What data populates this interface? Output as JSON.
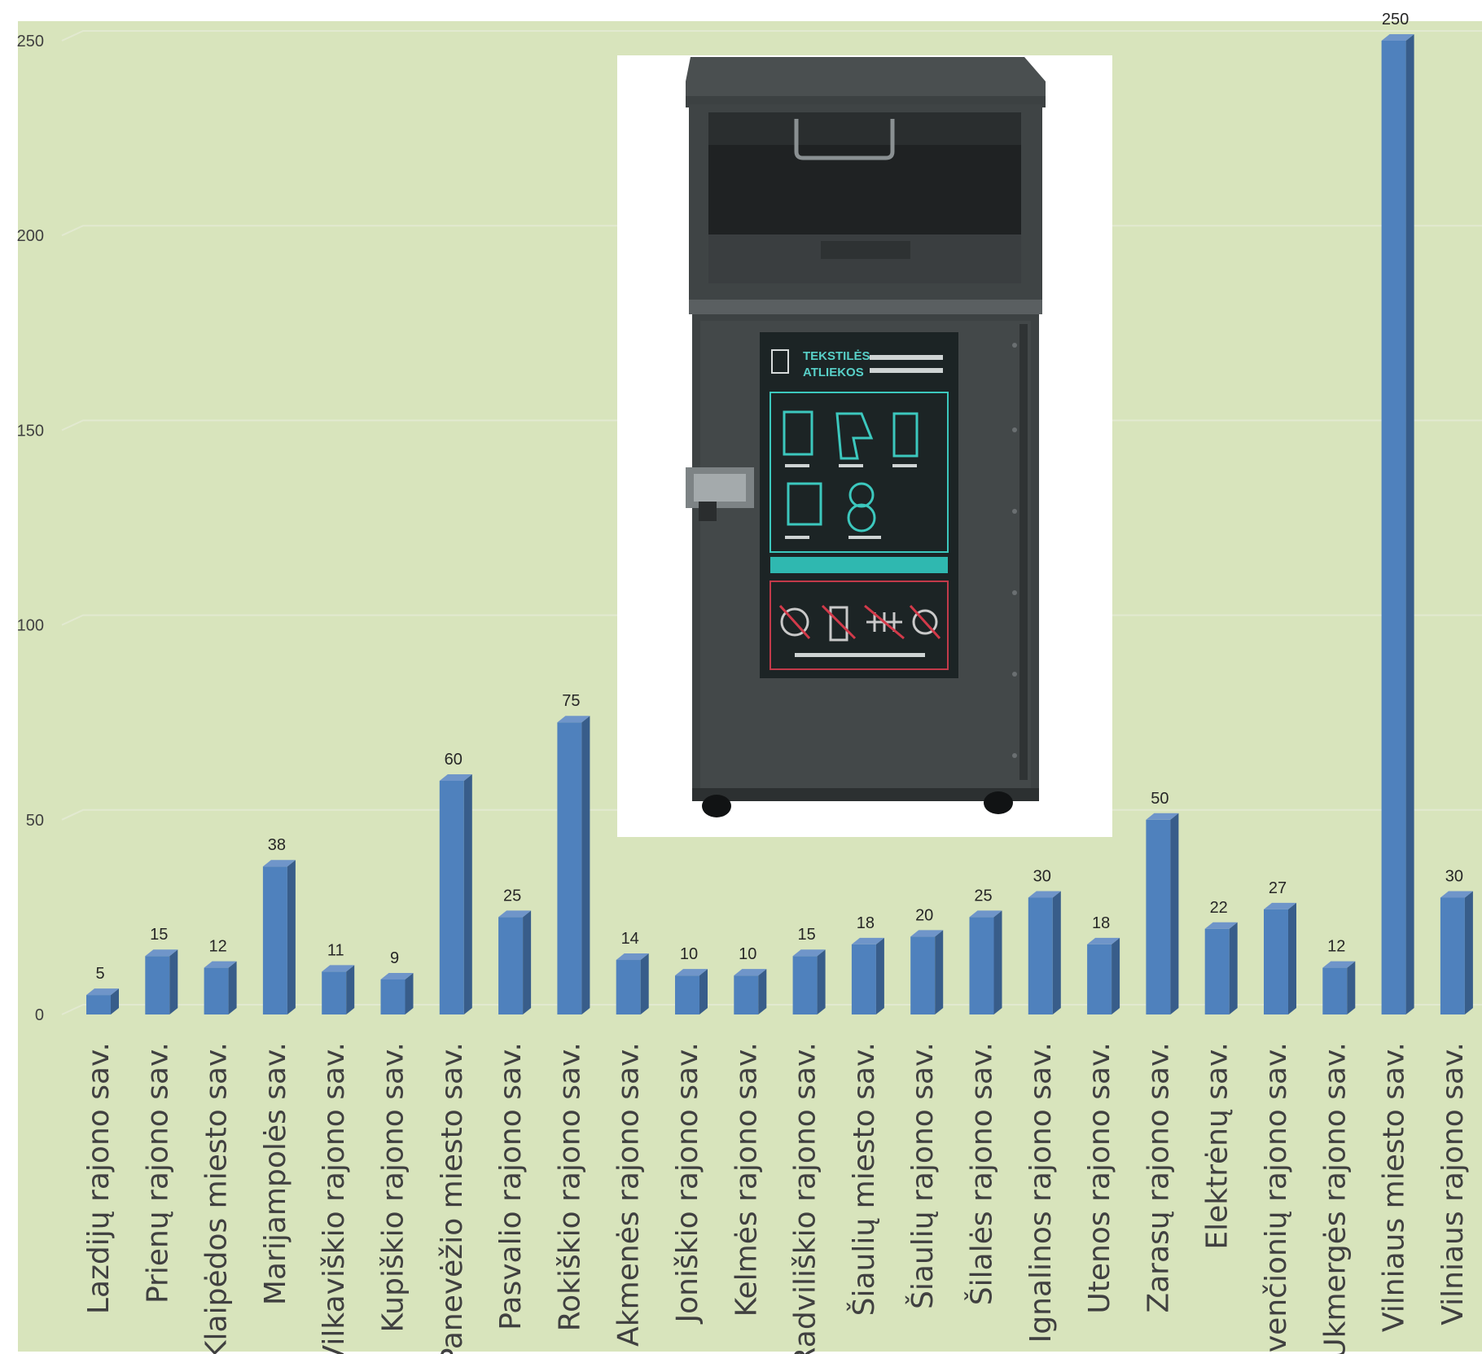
{
  "colors": {
    "plot_background": "#d8e4bc",
    "bar_front": "#4f81bd",
    "bar_side": "#385d8a",
    "bar_top": "#6f95c9",
    "gridline": "#e2e9d0"
  },
  "image": {
    "icon": "textile-waste-container-photo",
    "sign_title_line1": "TEKSTILĖS",
    "sign_title_line2": "ATLIEKOS"
  },
  "chart_data": {
    "type": "bar",
    "style": "3d-column",
    "grid": true,
    "legend": "none",
    "ylim": [
      0,
      250
    ],
    "yticks": [
      0,
      50,
      100,
      150,
      200,
      250
    ],
    "ytick_labels": [
      "0",
      "50",
      "100",
      "150",
      "200",
      "250"
    ],
    "categories": [
      "Lazdijų rajono sav.",
      "Prienų rajono sav.",
      "Klaipėdos miesto sav.",
      "Marijampolės sav.",
      "Vilkaviškio rajono sav.",
      "Kupiškio rajono sav.",
      "Panevėžio miesto sav.",
      "Pasvalio rajono sav.",
      "Rokiškio rajono sav.",
      "Akmenės rajono sav.",
      "Joniškio rajono sav.",
      "Kelmės rajono sav.",
      "Radviliškio rajono sav.",
      "Šiaulių miesto sav.",
      "Šiaulių rajono sav.",
      "Šilalės rajono sav.",
      "Ignalinos rajono sav.",
      "Utenos rajono sav.",
      "Zarasų rajono sav.",
      "Elektrėnų sav.",
      "Švenčionių rajono sav.",
      "Ukmergės rajono sav.",
      "Vilniaus miesto sav.",
      "Vilniaus rajono sav."
    ],
    "values": [
      5,
      15,
      12,
      38,
      11,
      9,
      60,
      25,
      75,
      14,
      10,
      10,
      15,
      18,
      20,
      25,
      30,
      18,
      50,
      22,
      27,
      12,
      250,
      30
    ],
    "data_labels": [
      "5",
      "15",
      "12",
      "38",
      "11",
      "9",
      "60",
      "25",
      "75",
      "14",
      "10",
      "10",
      "15",
      "18",
      "20",
      "25",
      "30",
      "18",
      "50",
      "22",
      "27",
      "12",
      "250",
      "30"
    ]
  }
}
